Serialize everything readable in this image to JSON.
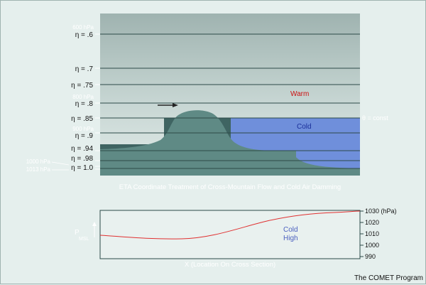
{
  "top_panel": {
    "eta_labels": [
      "η = .6",
      "η = .7",
      "η = .75",
      "η = .8",
      "η = .85",
      "η = .9",
      "η = .94",
      "η = .98",
      "η = 1.0"
    ],
    "pressure_labels": [
      "600 hPa",
      "800 hPa",
      "900 hPa",
      "1000 hPa",
      "1013 hPa"
    ],
    "warm_label": "Warm",
    "cold_label": "Cold",
    "theta_label": "θ = const",
    "caption": "ETA Coordinate Treatment of Cross-Mountain Flow and Cold Air Damming",
    "colors": {
      "warm_text": "#cc1111",
      "cold_fill": "#6f8fdb",
      "cold_text": "#1a2f9a",
      "terrain": "#5f8a85",
      "step": "#3f6462"
    }
  },
  "bottom_panel": {
    "y_axis_label": "P",
    "y_axis_sub": "MSL",
    "right_ticks": [
      "1030 (hPa)",
      "1020",
      "1010",
      "1000",
      "990"
    ],
    "cold_text": "Cold",
    "high_text": "High",
    "x_axis_label": "X (Location On Cross Section)",
    "line_color": "#e03030"
  },
  "credit": "The COMET Program"
}
